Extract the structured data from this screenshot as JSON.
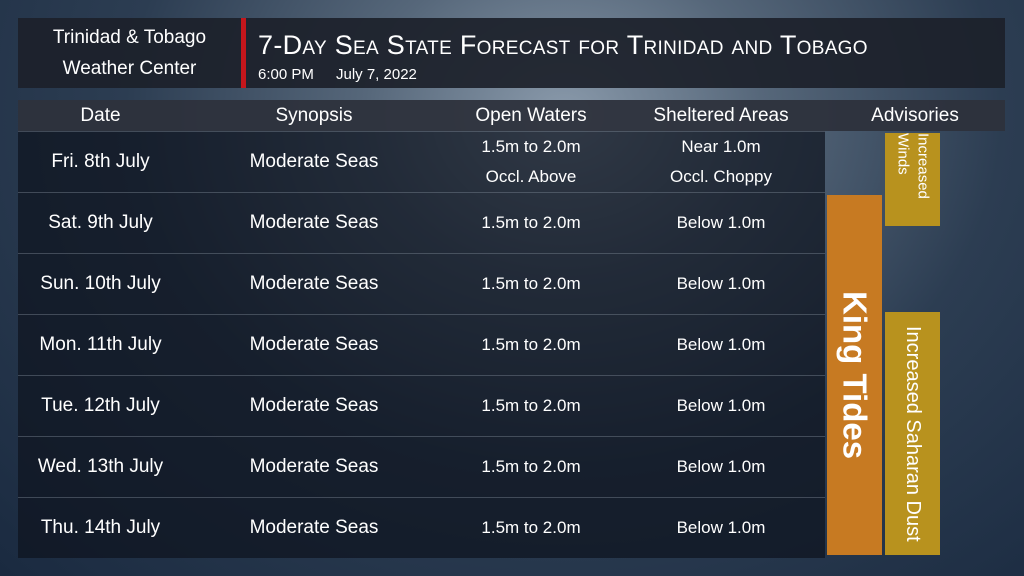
{
  "header": {
    "org": [
      "Trinidad & Tobago",
      "Weather Center"
    ],
    "title": "7-Day Sea State Forecast for Trinidad and Tobago",
    "time": "6:00 PM",
    "date": "July 7, 2022"
  },
  "table": {
    "columns": [
      "Date",
      "Synopsis",
      "Open Waters",
      "Sheltered Areas",
      "Advisories"
    ],
    "rows": [
      {
        "date": "Fri. 8th July",
        "synopsis": "Moderate Seas",
        "open_waters": [
          "1.5m to 2.0m",
          "Occl. Above"
        ],
        "sheltered": [
          "Near 1.0m",
          "Occl. Choppy"
        ]
      },
      {
        "date": "Sat. 9th July",
        "synopsis": "Moderate Seas",
        "open_waters": [
          "1.5m to 2.0m"
        ],
        "sheltered": [
          "Below 1.0m"
        ]
      },
      {
        "date": "Sun. 10th July",
        "synopsis": "Moderate Seas",
        "open_waters": [
          "1.5m to 2.0m"
        ],
        "sheltered": [
          "Below 1.0m"
        ]
      },
      {
        "date": "Mon. 11th July",
        "synopsis": "Moderate Seas",
        "open_waters": [
          "1.5m to 2.0m"
        ],
        "sheltered": [
          "Below 1.0m"
        ]
      },
      {
        "date": "Tue. 12th July",
        "synopsis": "Moderate Seas",
        "open_waters": [
          "1.5m to 2.0m"
        ],
        "sheltered": [
          "Below 1.0m"
        ]
      },
      {
        "date": "Wed. 13th July",
        "synopsis": "Moderate Seas",
        "open_waters": [
          "1.5m to 2.0m"
        ],
        "sheltered": [
          "Below 1.0m"
        ]
      },
      {
        "date": "Thu. 14th July",
        "synopsis": "Moderate Seas",
        "open_waters": [
          "1.5m to 2.0m"
        ],
        "sheltered": [
          "Below 1.0m"
        ]
      }
    ],
    "advisories": [
      "Increased Winds",
      "King Tides",
      "Increased Saharan Dust"
    ]
  }
}
